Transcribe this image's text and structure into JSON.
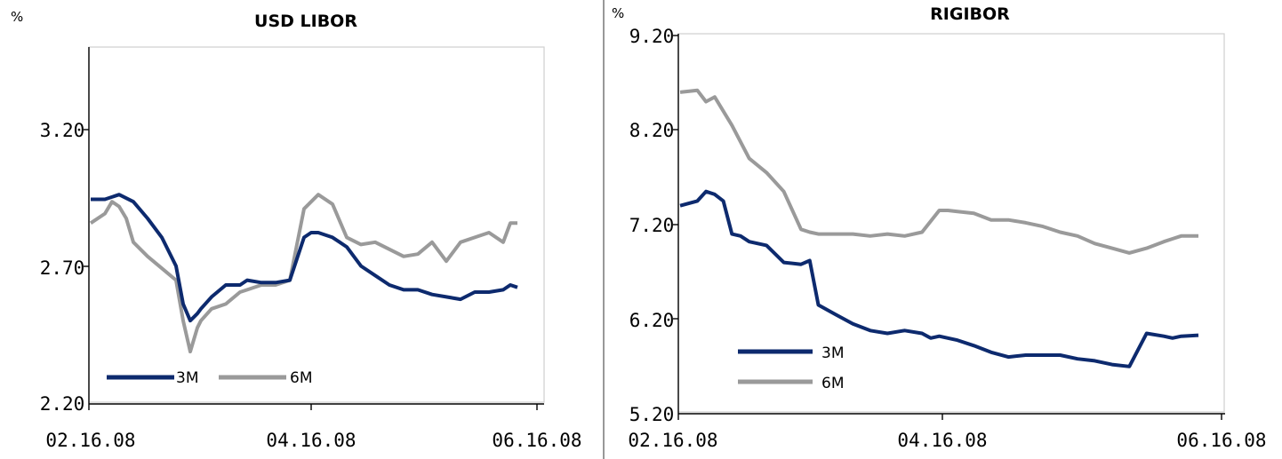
{
  "chart_data": [
    {
      "type": "line",
      "title": "USD LIBOR",
      "unit_label": "%",
      "ylim": [
        2.2,
        3.7
      ],
      "yticks": [
        "2.20",
        "2.70",
        "3.20"
      ],
      "xticks": [
        "02.16.08",
        "04.16.08",
        "06.16.08"
      ],
      "x_range": [
        0,
        120
      ],
      "legend_position": "bottom-left",
      "grid": false,
      "series": [
        {
          "name": "3M",
          "color": "#0d2a6e",
          "x": [
            0,
            4,
            8,
            12,
            16,
            20,
            24,
            26,
            28,
            30,
            31,
            34,
            38,
            42,
            44,
            48,
            52,
            56,
            60,
            62,
            64,
            68,
            72,
            76,
            80,
            84,
            88,
            92,
            96,
            100,
            104,
            108,
            112,
            116,
            118,
            120
          ],
          "y": [
            3.06,
            3.06,
            3.08,
            3.05,
            2.98,
            2.9,
            2.78,
            2.62,
            2.55,
            2.58,
            2.6,
            2.65,
            2.7,
            2.7,
            2.72,
            2.71,
            2.71,
            2.72,
            2.9,
            2.92,
            2.92,
            2.9,
            2.86,
            2.78,
            2.74,
            2.7,
            2.68,
            2.68,
            2.66,
            2.65,
            2.64,
            2.67,
            2.67,
            2.68,
            2.7,
            2.69
          ]
        },
        {
          "name": "6M",
          "color": "#9a9a9a",
          "x": [
            0,
            4,
            6,
            8,
            10,
            12,
            16,
            20,
            24,
            26,
            28,
            30,
            31,
            34,
            38,
            42,
            44,
            48,
            52,
            56,
            60,
            62,
            64,
            68,
            72,
            76,
            80,
            84,
            88,
            92,
            96,
            100,
            104,
            108,
            112,
            116,
            118,
            120
          ],
          "y": [
            2.96,
            3.0,
            3.05,
            3.03,
            2.98,
            2.88,
            2.82,
            2.77,
            2.72,
            2.55,
            2.42,
            2.52,
            2.55,
            2.6,
            2.62,
            2.67,
            2.68,
            2.7,
            2.7,
            2.72,
            3.02,
            3.05,
            3.08,
            3.04,
            2.9,
            2.87,
            2.88,
            2.85,
            2.82,
            2.83,
            2.88,
            2.8,
            2.88,
            2.9,
            2.92,
            2.88,
            2.96,
            2.96
          ]
        }
      ]
    },
    {
      "type": "line",
      "title": "RIGIBOR",
      "unit_label": "%",
      "ylim": [
        5.2,
        9.2
      ],
      "yticks": [
        "5.20",
        "6.20",
        "7.20",
        "8.20",
        "9.20"
      ],
      "xticks": [
        "02.16.08",
        "04.16.08",
        "06.16.08"
      ],
      "x_range": [
        0,
        120
      ],
      "legend_position": "bottom-left",
      "grid": false,
      "series": [
        {
          "name": "3M",
          "color": "#0d2a6e",
          "x": [
            0,
            4,
            6,
            8,
            10,
            12,
            14,
            16,
            20,
            24,
            28,
            30,
            32,
            34,
            36,
            40,
            44,
            48,
            52,
            56,
            58,
            60,
            64,
            68,
            72,
            76,
            80,
            84,
            88,
            92,
            96,
            100,
            104,
            108,
            112,
            114,
            116,
            120
          ],
          "y": [
            7.4,
            7.45,
            7.55,
            7.52,
            7.45,
            7.1,
            7.08,
            7.02,
            6.98,
            6.8,
            6.78,
            6.82,
            6.35,
            6.3,
            6.25,
            6.15,
            6.08,
            6.05,
            6.08,
            6.05,
            6.0,
            6.02,
            5.98,
            5.92,
            5.85,
            5.8,
            5.82,
            5.82,
            5.82,
            5.78,
            5.76,
            5.72,
            5.7,
            6.05,
            6.02,
            6.0,
            6.02,
            6.03
          ]
        },
        {
          "name": "6M",
          "color": "#9a9a9a",
          "x": [
            0,
            4,
            6,
            8,
            12,
            16,
            20,
            24,
            28,
            30,
            32,
            36,
            40,
            44,
            48,
            52,
            56,
            60,
            62,
            64,
            68,
            72,
            76,
            80,
            84,
            88,
            92,
            96,
            100,
            104,
            108,
            112,
            114,
            116,
            120
          ],
          "y": [
            8.6,
            8.62,
            8.5,
            8.55,
            8.25,
            7.9,
            7.75,
            7.55,
            7.15,
            7.12,
            7.1,
            7.1,
            7.1,
            7.08,
            7.1,
            7.08,
            7.12,
            7.35,
            7.35,
            7.34,
            7.32,
            7.25,
            7.25,
            7.22,
            7.18,
            7.12,
            7.08,
            7.0,
            6.95,
            6.9,
            6.95,
            7.02,
            7.05,
            7.08,
            7.08
          ]
        }
      ]
    }
  ]
}
